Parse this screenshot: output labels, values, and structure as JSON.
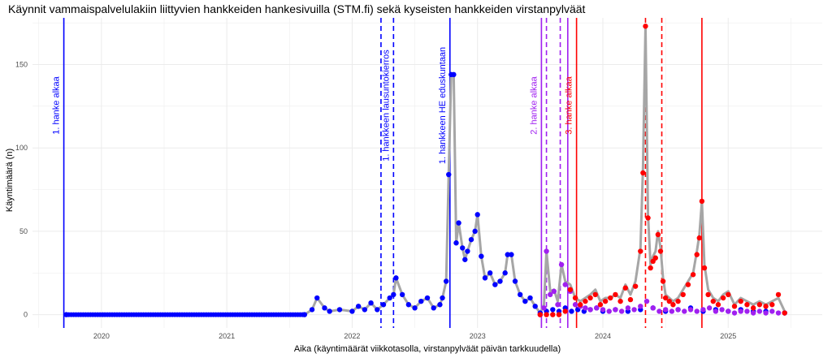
{
  "chart_data": {
    "type": "line",
    "title": "Käynnit vammaispalvelulakiin liittyvien hankkeiden hankesivuilla (STM.fi) sekä kyseisten hankkeiden virstanpylväät",
    "xlabel": "Aika (käyntimäärät viikkotasolla, virstanpylväät päivän tarkkuudella)",
    "ylabel": "Käyntimäärä (n)",
    "ylim": [
      -8,
      178
    ],
    "xlim": [
      2019.45,
      2025.75
    ],
    "grid": true,
    "legend": "none",
    "y_ticks": [
      0,
      50,
      100,
      150
    ],
    "x_ticks": [
      {
        "value": 2020.0,
        "label": "2020"
      },
      {
        "value": 2021.0,
        "label": "2021"
      },
      {
        "value": 2022.0,
        "label": "2022"
      },
      {
        "value": 2023.0,
        "label": "2023"
      },
      {
        "value": 2024.0,
        "label": "2024"
      },
      {
        "value": 2025.0,
        "label": "2025"
      }
    ],
    "colors": {
      "series1": "#0000ff",
      "series2": "#a020f0",
      "series3": "#ff0000",
      "total_line": "#a6a6a6",
      "grid": "#ebebeb"
    },
    "milestones": [
      {
        "x": 2019.7,
        "color": "#0000ff",
        "dash": false,
        "label": "1. hanke alkaa"
      },
      {
        "x": 2022.23,
        "color": "#0000ff",
        "dash": true,
        "label": ""
      },
      {
        "x": 2022.33,
        "color": "#0000ff",
        "dash": true,
        "label": "1. hankkeen lausuntokierros"
      },
      {
        "x": 2022.78,
        "color": "#0000ff",
        "dash": false,
        "label": "1. hankkeen HE eduskuntaan"
      },
      {
        "x": 2023.51,
        "color": "#a020f0",
        "dash": false,
        "label": "2. hanke alkaa"
      },
      {
        "x": 2023.55,
        "color": "#a020f0",
        "dash": true,
        "label": ""
      },
      {
        "x": 2023.66,
        "color": "#a020f0",
        "dash": true,
        "label": ""
      },
      {
        "x": 2023.72,
        "color": "#a020f0",
        "dash": false,
        "label": ""
      },
      {
        "x": 2023.79,
        "color": "#ff0000",
        "dash": false,
        "label": "3. hanke alkaa"
      },
      {
        "x": 2024.34,
        "color": "#ff0000",
        "dash": true,
        "label": ""
      },
      {
        "x": 2024.47,
        "color": "#ff0000",
        "dash": true,
        "label": ""
      },
      {
        "x": 2024.79,
        "color": "#ff0000",
        "dash": false,
        "label": ""
      }
    ],
    "total": {
      "x": [
        2019.72,
        2021.62,
        2021.68,
        2021.72,
        2021.78,
        2021.82,
        2021.9,
        2022.0,
        2022.05,
        2022.1,
        2022.15,
        2022.2,
        2022.25,
        2022.3,
        2022.33,
        2022.35,
        2022.4,
        2022.45,
        2022.5,
        2022.55,
        2022.6,
        2022.65,
        2022.7,
        2022.72,
        2022.75,
        2022.77,
        2022.79,
        2022.81,
        2022.83,
        2022.85,
        2022.88,
        2022.9,
        2022.92,
        2022.95,
        2022.98,
        2023.0,
        2023.03,
        2023.06,
        2023.1,
        2023.14,
        2023.18,
        2023.22,
        2023.24,
        2023.27,
        2023.3,
        2023.34,
        2023.38,
        2023.42,
        2023.46,
        2023.5,
        2023.53,
        2023.55,
        2023.58,
        2023.61,
        2023.64,
        2023.67,
        2023.7,
        2023.74,
        2023.78,
        2023.82,
        2023.86,
        2023.9,
        2023.94,
        2023.98,
        2024.02,
        2024.06,
        2024.1,
        2024.14,
        2024.18,
        2024.22,
        2024.26,
        2024.3,
        2024.32,
        2024.34,
        2024.36,
        2024.38,
        2024.4,
        2024.42,
        2024.44,
        2024.46,
        2024.48,
        2024.5,
        2024.53,
        2024.56,
        2024.6,
        2024.64,
        2024.68,
        2024.72,
        2024.75,
        2024.77,
        2024.79,
        2024.81,
        2024.84,
        2024.88,
        2024.92,
        2024.96,
        2025.0,
        2025.05,
        2025.1,
        2025.15,
        2025.2,
        2025.25,
        2025.3,
        2025.35,
        2025.4,
        2025.45
      ],
      "y": [
        0,
        0,
        3,
        10,
        4,
        2,
        3,
        2,
        5,
        3,
        7,
        3,
        6,
        10,
        12,
        22,
        12,
        6,
        4,
        8,
        10,
        4,
        6,
        10,
        20,
        84,
        144,
        144,
        43,
        55,
        40,
        33,
        38,
        45,
        50,
        60,
        35,
        22,
        25,
        18,
        20,
        25,
        36,
        36,
        20,
        12,
        8,
        10,
        5,
        1,
        6,
        38,
        14,
        15,
        8,
        30,
        20,
        18,
        10,
        8,
        10,
        12,
        15,
        8,
        10,
        10,
        12,
        10,
        18,
        12,
        20,
        40,
        88,
        173,
        60,
        30,
        35,
        38,
        50,
        40,
        22,
        12,
        10,
        8,
        10,
        15,
        20,
        25,
        38,
        48,
        68,
        30,
        15,
        10,
        8,
        12,
        14,
        6,
        10,
        8,
        6,
        8,
        6,
        8,
        10,
        2
      ]
    },
    "series": [
      {
        "x": [
          2019.72,
          2021.62,
          2021.68,
          2021.72,
          2021.78,
          2021.82,
          2021.9,
          2022.0,
          2022.05,
          2022.1,
          2022.15,
          2022.2,
          2022.25,
          2022.3,
          2022.33,
          2022.35,
          2022.4,
          2022.45,
          2022.5,
          2022.55,
          2022.6,
          2022.65,
          2022.7,
          2022.72,
          2022.75,
          2022.77,
          2022.79,
          2022.81,
          2022.83,
          2022.85,
          2022.88,
          2022.9,
          2022.92,
          2022.95,
          2022.98,
          2023.0,
          2023.03,
          2023.06,
          2023.1,
          2023.14,
          2023.18,
          2023.22,
          2023.24,
          2023.27,
          2023.3,
          2023.34,
          2023.38,
          2023.42,
          2023.46,
          2023.5,
          2023.55,
          2023.6,
          2023.65,
          2023.7,
          2023.75,
          2023.8,
          2023.85,
          2023.9,
          2023.95,
          2024.0,
          2024.1,
          2024.2,
          2024.3,
          2024.4,
          2024.5,
          2024.6,
          2024.7,
          2024.8,
          2024.9,
          2025.0,
          2025.1,
          2025.2,
          2025.3,
          2025.45
        ],
        "y": [
          0,
          0,
          3,
          10,
          4,
          2,
          3,
          2,
          5,
          3,
          7,
          3,
          6,
          10,
          12,
          22,
          12,
          6,
          4,
          8,
          10,
          4,
          6,
          10,
          20,
          84,
          144,
          144,
          43,
          55,
          40,
          33,
          38,
          45,
          50,
          60,
          35,
          22,
          25,
          18,
          20,
          25,
          36,
          36,
          20,
          12,
          8,
          10,
          5,
          1,
          2,
          3,
          2,
          4,
          2,
          3,
          2,
          3,
          4,
          2,
          3,
          2,
          3,
          4,
          2,
          3,
          4,
          2,
          3,
          2,
          3,
          2,
          2,
          1
        ]
      },
      {
        "x": [
          2023.5,
          2023.53,
          2023.55,
          2023.58,
          2023.61,
          2023.64,
          2023.67,
          2023.7,
          2023.74,
          2023.78,
          2023.82,
          2023.86,
          2023.9,
          2023.95,
          2024.0,
          2024.05,
          2024.1,
          2024.15,
          2024.2,
          2024.25,
          2024.3,
          2024.35,
          2024.4,
          2024.45,
          2024.5,
          2024.55,
          2024.6,
          2024.65,
          2024.7,
          2024.75,
          2024.8,
          2024.85,
          2024.9,
          2024.95,
          2025.0,
          2025.05,
          2025.1,
          2025.15,
          2025.2,
          2025.25,
          2025.3,
          2025.35,
          2025.4,
          2025.45
        ],
        "y": [
          0,
          4,
          38,
          12,
          14,
          6,
          30,
          18,
          14,
          6,
          5,
          4,
          3,
          4,
          3,
          2,
          3,
          2,
          4,
          3,
          5,
          8,
          4,
          2,
          3,
          2,
          3,
          2,
          3,
          2,
          3,
          4,
          2,
          3,
          2,
          1,
          2,
          2,
          1,
          2,
          1,
          2,
          1,
          1
        ]
      },
      {
        "x": [
          2023.5,
          2023.55,
          2023.6,
          2023.65,
          2023.7,
          2023.74,
          2023.78,
          2023.82,
          2023.86,
          2023.9,
          2023.94,
          2023.98,
          2024.02,
          2024.06,
          2024.1,
          2024.14,
          2024.18,
          2024.22,
          2024.26,
          2024.3,
          2024.32,
          2024.34,
          2024.36,
          2024.38,
          2024.4,
          2024.42,
          2024.44,
          2024.46,
          2024.48,
          2024.5,
          2024.53,
          2024.56,
          2024.6,
          2024.64,
          2024.68,
          2024.72,
          2024.75,
          2024.77,
          2024.79,
          2024.81,
          2024.84,
          2024.88,
          2024.92,
          2024.96,
          2025.0,
          2025.05,
          2025.1,
          2025.15,
          2025.2,
          2025.25,
          2025.3,
          2025.35,
          2025.4,
          2025.45
        ],
        "y": [
          0,
          0,
          0,
          0,
          2,
          15,
          10,
          6,
          8,
          10,
          12,
          6,
          8,
          10,
          12,
          8,
          16,
          9,
          17,
          38,
          85,
          173,
          58,
          28,
          32,
          34,
          48,
          38,
          20,
          10,
          8,
          6,
          8,
          12,
          18,
          24,
          36,
          46,
          68,
          28,
          12,
          8,
          6,
          10,
          12,
          5,
          8,
          6,
          4,
          6,
          5,
          6,
          12,
          1
        ]
      }
    ]
  }
}
